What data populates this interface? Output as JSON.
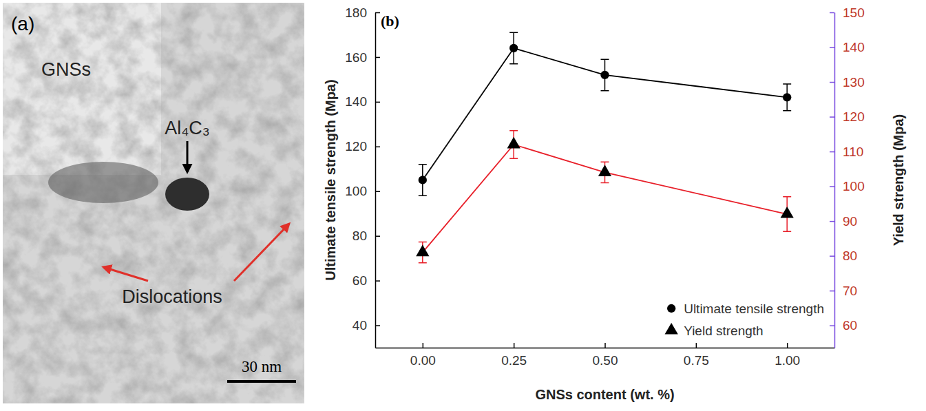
{
  "image_panel": {
    "panel_label": "(a)",
    "labels": [
      "GNSs",
      "Al₄C₃",
      "Dislocations"
    ],
    "scale_bar": "30 nm"
  },
  "chart_data": {
    "type": "line",
    "panel_label": "(b)",
    "x_label": "GNSs content (wt. %)",
    "y_label": "Ultimate tensile strength (Mpa)",
    "y2_label": "Yield strength (Mpa)",
    "x": [
      0,
      0.25,
      0.5,
      1
    ],
    "xlim": [
      -0.13,
      1.13
    ],
    "xticks": [
      {
        "value": 0,
        "label": "0.00"
      },
      {
        "value": 0.25,
        "label": "0.25"
      },
      {
        "value": 0.5,
        "label": "0.50"
      },
      {
        "value": 0.75,
        "label": "0.75"
      },
      {
        "value": 1,
        "label": "1.00"
      }
    ],
    "ylim": [
      30,
      180
    ],
    "yticks": [
      40,
      60,
      80,
      100,
      120,
      140,
      160,
      180
    ],
    "y2lim": [
      53.6,
      150
    ],
    "y2ticks": [
      60,
      70,
      80,
      90,
      100,
      110,
      120,
      130,
      140,
      150
    ],
    "legend": "lower right",
    "series": [
      {
        "name": "Ultimate tensile strength",
        "color": "#000000",
        "marker": "circle",
        "values": [
          105,
          164,
          152,
          142
        ],
        "errors": [
          7,
          7,
          7,
          6
        ]
      },
      {
        "name": "Yield strength",
        "color": "#e8202a",
        "marker": "triangle",
        "axis": "y2",
        "values": [
          81,
          112,
          104,
          92
        ],
        "errors": [
          3,
          4,
          3,
          5
        ]
      }
    ]
  }
}
